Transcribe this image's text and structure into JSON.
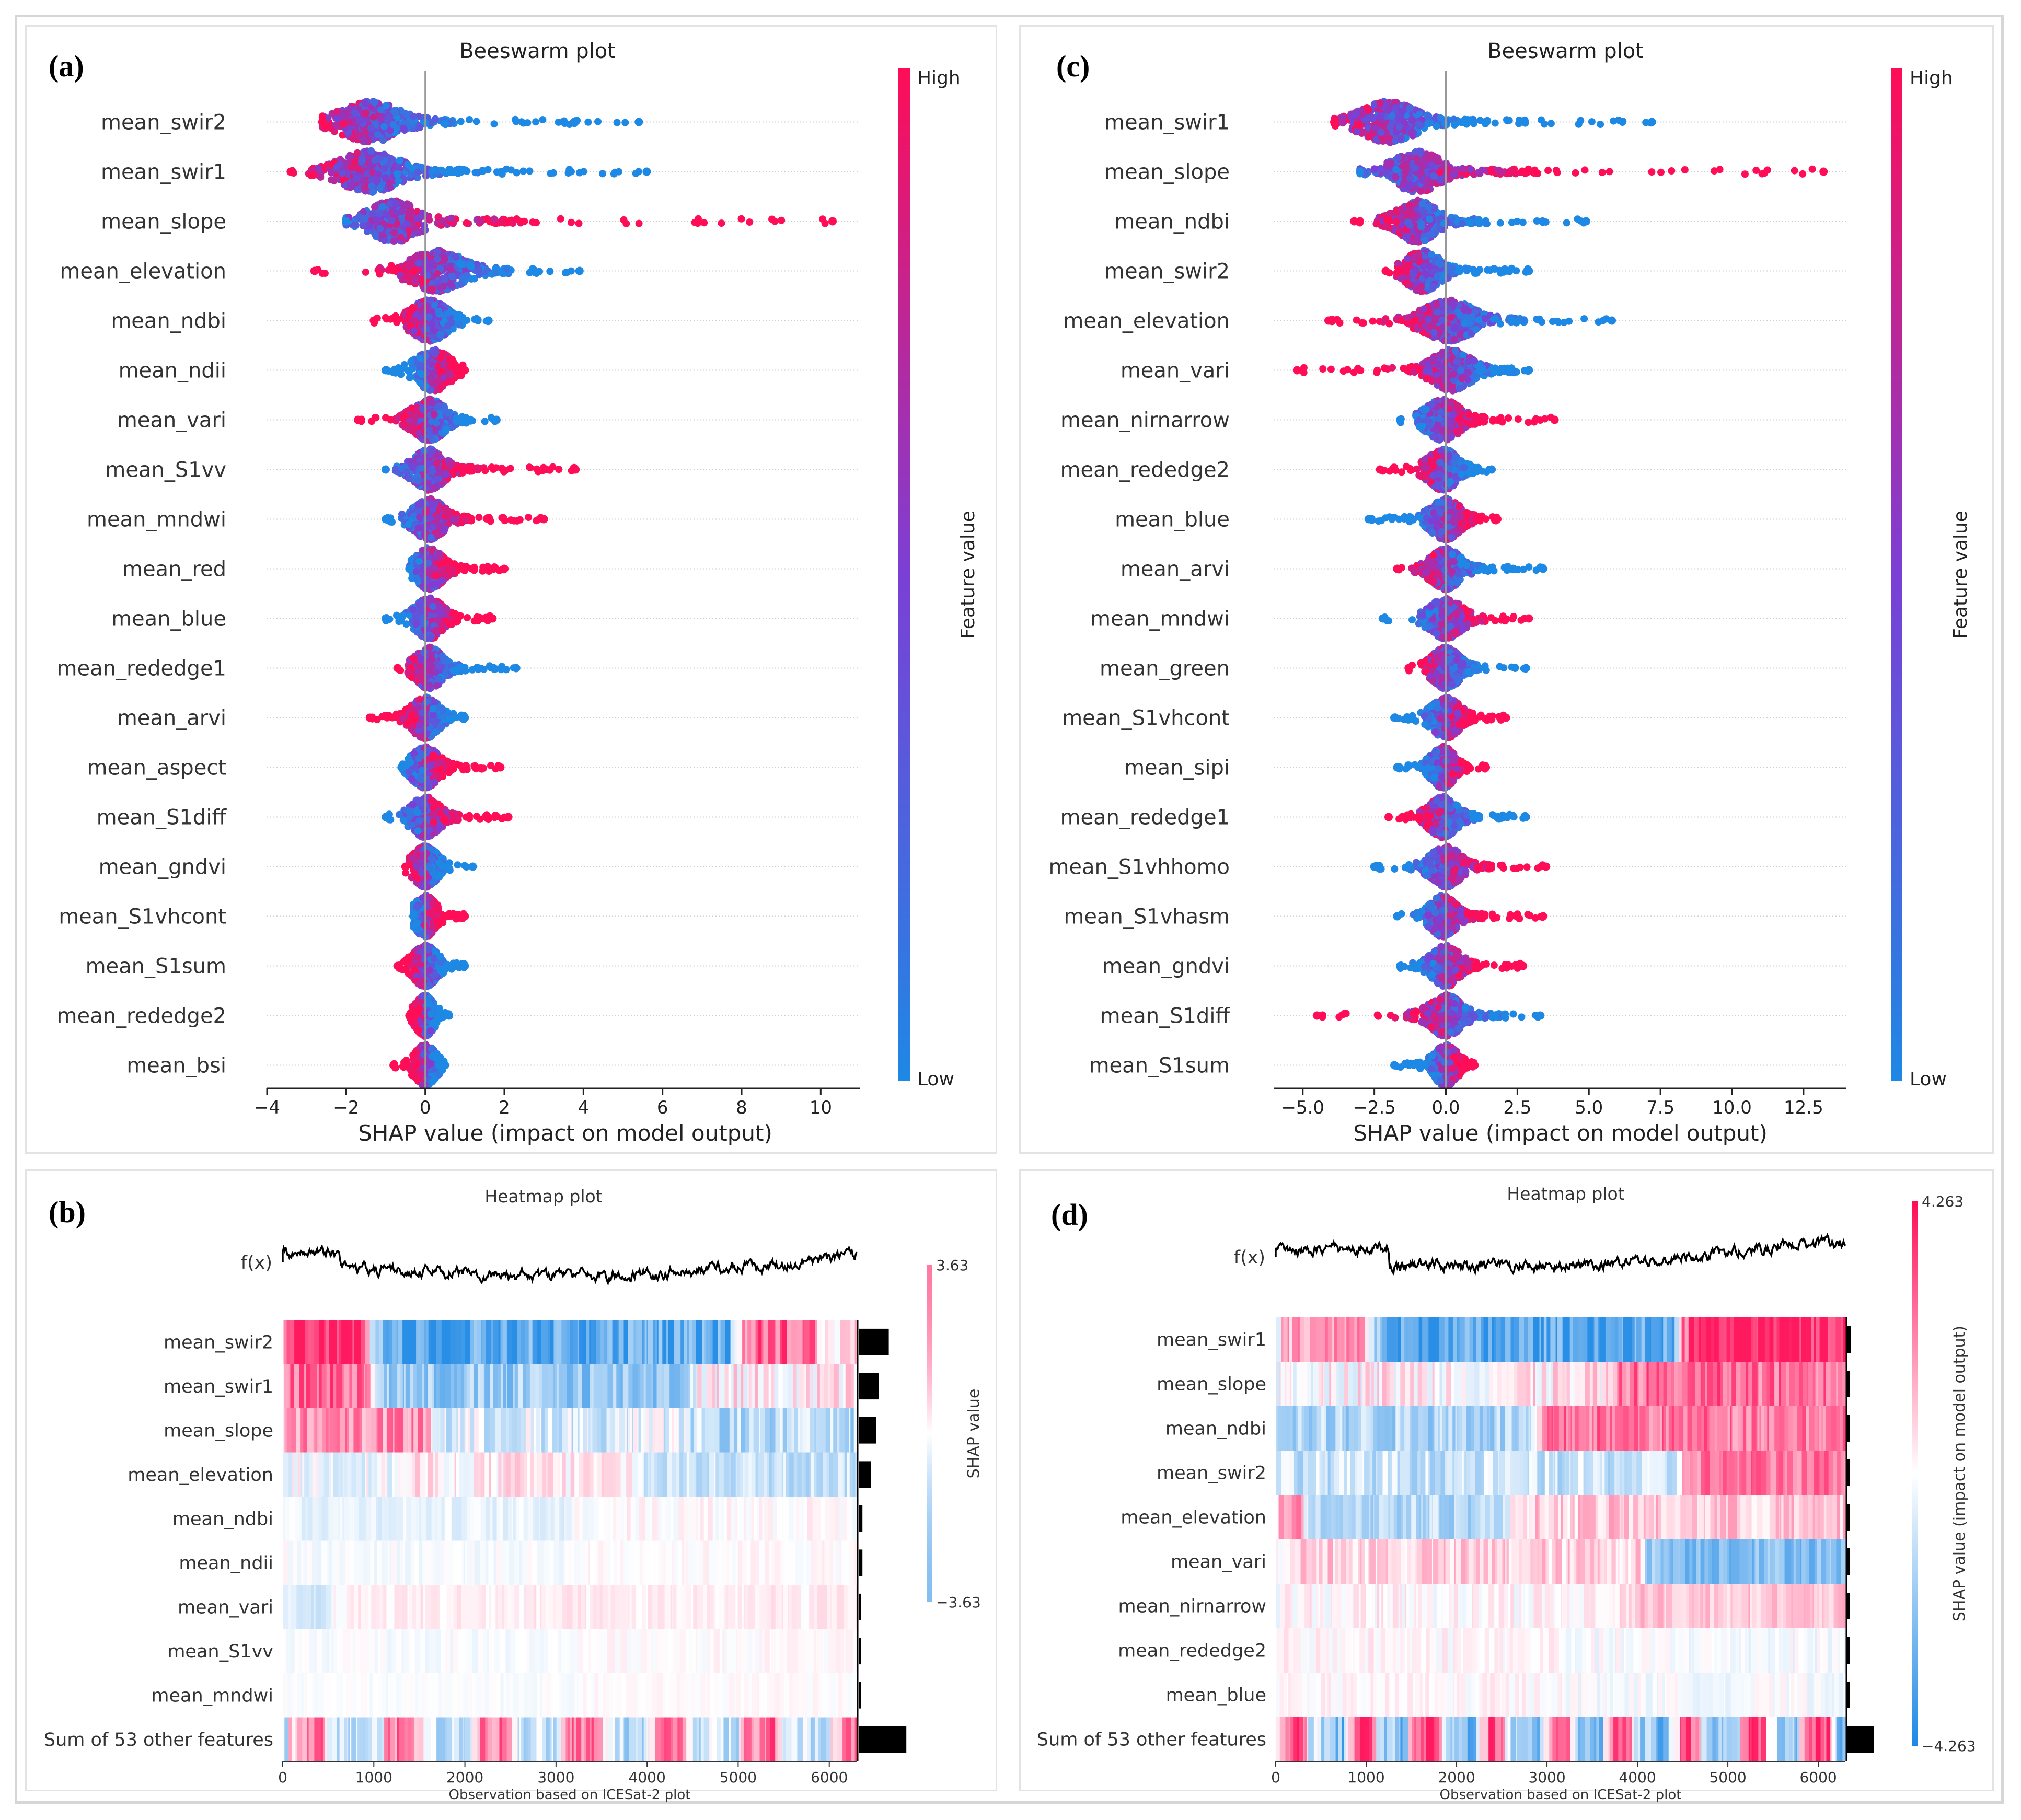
{
  "colors": {
    "high": "#ff0d57",
    "low": "#1e88e5",
    "mid": "#7b3fd6",
    "frame": "#d6d6d6"
  },
  "panels": {
    "a": {
      "label": "(a)"
    },
    "b": {
      "label": "(b)"
    },
    "c": {
      "label": "(c)"
    },
    "d": {
      "label": "(d)"
    }
  },
  "chart_data": [
    {
      "id": "a",
      "type": "scatter",
      "subtype": "beeswarm",
      "title": "Beeswarm plot",
      "xlabel": "SHAP value (impact on model output)",
      "xlim": [
        -4,
        11
      ],
      "xticks": [
        -4,
        -2,
        0,
        2,
        4,
        6,
        8,
        10
      ],
      "xtick_labels": [
        "−4",
        "−2",
        "0",
        "2",
        "4",
        "6",
        "8",
        "10"
      ],
      "colorbar": {
        "label": "Feature value",
        "high": "High",
        "low": "Low"
      },
      "features": [
        {
          "name": "mean_swir2",
          "min": -2.6,
          "max": 5.4,
          "mode": -1.4,
          "spread": 1.0,
          "high_side": "left"
        },
        {
          "name": "mean_swir1",
          "min": -3.4,
          "max": 5.6,
          "mode": -1.4,
          "spread": 1.0,
          "high_side": "left"
        },
        {
          "name": "mean_slope",
          "min": -2.0,
          "max": 10.3,
          "mode": -0.8,
          "spread": 0.8,
          "high_side": "right"
        },
        {
          "name": "mean_elevation",
          "min": -2.8,
          "max": 3.9,
          "mode": 0.3,
          "spread": 0.9,
          "high_side": "left"
        },
        {
          "name": "mean_ndbi",
          "min": -1.3,
          "max": 1.6,
          "mode": 0.1,
          "spread": 0.6,
          "high_side": "left"
        },
        {
          "name": "mean_ndii",
          "min": -1.0,
          "max": 1.0,
          "mode": 0.2,
          "spread": 0.55,
          "high_side": "right"
        },
        {
          "name": "mean_vari",
          "min": -1.7,
          "max": 1.8,
          "mode": 0.1,
          "spread": 0.55,
          "high_side": "left"
        },
        {
          "name": "mean_S1vv",
          "min": -1.0,
          "max": 3.8,
          "mode": 0.1,
          "spread": 0.5,
          "high_side": "right"
        },
        {
          "name": "mean_mndwi",
          "min": -1.0,
          "max": 3.0,
          "mode": 0.1,
          "spread": 0.5,
          "high_side": "right"
        },
        {
          "name": "mean_red",
          "min": -0.4,
          "max": 2.0,
          "mode": 0.1,
          "spread": 0.45,
          "high_side": "right"
        },
        {
          "name": "mean_blue",
          "min": -1.0,
          "max": 1.7,
          "mode": 0.1,
          "spread": 0.45,
          "high_side": "right"
        },
        {
          "name": "mean_rededge1",
          "min": -0.7,
          "max": 2.3,
          "mode": 0.1,
          "spread": 0.45,
          "high_side": "left"
        },
        {
          "name": "mean_arvi",
          "min": -1.4,
          "max": 1.0,
          "mode": 0.0,
          "spread": 0.45,
          "high_side": "left"
        },
        {
          "name": "mean_aspect",
          "min": -0.6,
          "max": 1.9,
          "mode": 0.0,
          "spread": 0.45,
          "high_side": "right"
        },
        {
          "name": "mean_S1diff",
          "min": -1.0,
          "max": 2.1,
          "mode": 0.0,
          "spread": 0.45,
          "high_side": "right"
        },
        {
          "name": "mean_gndvi",
          "min": -0.5,
          "max": 1.2,
          "mode": 0.0,
          "spread": 0.4,
          "high_side": "left"
        },
        {
          "name": "mean_S1vhcont",
          "min": -0.3,
          "max": 1.0,
          "mode": 0.0,
          "spread": 0.35,
          "high_side": "right"
        },
        {
          "name": "mean_S1sum",
          "min": -0.7,
          "max": 1.0,
          "mode": 0.0,
          "spread": 0.4,
          "high_side": "left"
        },
        {
          "name": "mean_rededge2",
          "min": -0.4,
          "max": 0.6,
          "mode": 0.0,
          "spread": 0.3,
          "high_side": "left"
        },
        {
          "name": "mean_bsi",
          "min": -0.8,
          "max": 0.5,
          "mode": 0.0,
          "spread": 0.35,
          "high_side": "left"
        }
      ]
    },
    {
      "id": "b",
      "type": "heatmap",
      "title": "Heatmap plot",
      "xlabel": "Observation based on ICESat-2 plot",
      "fx_label": "f(x)",
      "xlim": [
        0,
        6300
      ],
      "xticks": [
        0,
        1000,
        2000,
        3000,
        4000,
        5000,
        6000
      ],
      "xtick_labels": [
        "0",
        "1000",
        "2000",
        "3000",
        "4000",
        "5000",
        "6000"
      ],
      "colorbar": {
        "label": "SHAP value",
        "max_label": "3.63",
        "min_label": "−3.63"
      },
      "features": [
        {
          "name": "mean_swir2",
          "intensity": 1.0,
          "importance": 0.24
        },
        {
          "name": "mean_swir1",
          "intensity": 0.85,
          "importance": 0.16
        },
        {
          "name": "mean_slope",
          "intensity": 0.8,
          "importance": 0.14
        },
        {
          "name": "mean_elevation",
          "intensity": 0.6,
          "importance": 0.1
        },
        {
          "name": "mean_ndbi",
          "intensity": 0.3,
          "importance": 0.03
        },
        {
          "name": "mean_ndii",
          "intensity": 0.22,
          "importance": 0.03
        },
        {
          "name": "mean_vari",
          "intensity": 0.28,
          "importance": 0.02
        },
        {
          "name": "mean_S1vv",
          "intensity": 0.2,
          "importance": 0.02
        },
        {
          "name": "mean_mndwi",
          "intensity": 0.15,
          "importance": 0.02
        },
        {
          "name": "Sum of 53 other features",
          "intensity": 0.9,
          "importance": 0.38
        }
      ]
    },
    {
      "id": "c",
      "type": "scatter",
      "subtype": "beeswarm",
      "title": "Beeswarm plot",
      "xlabel": "SHAP value (impact on model output)",
      "xlim": [
        -6,
        14
      ],
      "xticks": [
        -5,
        -2.5,
        0,
        2.5,
        5,
        7.5,
        10,
        12.5
      ],
      "xtick_labels": [
        "−5.0",
        "−2.5",
        "0.0",
        "2.5",
        "5.0",
        "7.5",
        "10.0",
        "12.5"
      ],
      "colorbar": {
        "label": "Feature value",
        "high": "High",
        "low": "Low"
      },
      "features": [
        {
          "name": "mean_swir1",
          "min": -3.9,
          "max": 7.2,
          "mode": -2.0,
          "spread": 1.3,
          "high_side": "left"
        },
        {
          "name": "mean_slope",
          "min": -3.0,
          "max": 13.2,
          "mode": -1.0,
          "spread": 1.1,
          "high_side": "right"
        },
        {
          "name": "mean_ndbi",
          "min": -3.2,
          "max": 4.9,
          "mode": -1.0,
          "spread": 0.9,
          "high_side": "left"
        },
        {
          "name": "mean_swir2",
          "min": -2.1,
          "max": 2.9,
          "mode": -0.8,
          "spread": 0.8,
          "high_side": "left"
        },
        {
          "name": "mean_elevation",
          "min": -4.1,
          "max": 5.8,
          "mode": 0.1,
          "spread": 1.2,
          "high_side": "left"
        },
        {
          "name": "mean_vari",
          "min": -5.2,
          "max": 2.9,
          "mode": 0.2,
          "spread": 0.9,
          "high_side": "left"
        },
        {
          "name": "mean_nirnarrow",
          "min": -1.6,
          "max": 3.8,
          "mode": -0.1,
          "spread": 0.8,
          "high_side": "right"
        },
        {
          "name": "mean_rededge2",
          "min": -2.3,
          "max": 1.6,
          "mode": -0.1,
          "spread": 0.7,
          "high_side": "left"
        },
        {
          "name": "mean_blue",
          "min": -2.7,
          "max": 1.8,
          "mode": 0.0,
          "spread": 0.7,
          "high_side": "right"
        },
        {
          "name": "mean_arvi",
          "min": -1.7,
          "max": 3.4,
          "mode": 0.0,
          "spread": 0.7,
          "high_side": "left"
        },
        {
          "name": "mean_mndwi",
          "min": -2.2,
          "max": 2.9,
          "mode": 0.0,
          "spread": 0.75,
          "high_side": "right"
        },
        {
          "name": "mean_green",
          "min": -1.3,
          "max": 2.8,
          "mode": 0.0,
          "spread": 0.65,
          "high_side": "left"
        },
        {
          "name": "mean_S1vhcont",
          "min": -1.8,
          "max": 2.1,
          "mode": 0.0,
          "spread": 0.65,
          "high_side": "right"
        },
        {
          "name": "mean_sipi",
          "min": -1.7,
          "max": 1.4,
          "mode": -0.1,
          "spread": 0.55,
          "high_side": "right"
        },
        {
          "name": "mean_rededge1",
          "min": -2.0,
          "max": 2.8,
          "mode": -0.1,
          "spread": 0.65,
          "high_side": "left"
        },
        {
          "name": "mean_S1vhhomo",
          "min": -2.5,
          "max": 3.5,
          "mode": 0.0,
          "spread": 0.7,
          "high_side": "right"
        },
        {
          "name": "mean_S1vhasm",
          "min": -1.7,
          "max": 3.4,
          "mode": -0.1,
          "spread": 0.6,
          "high_side": "right"
        },
        {
          "name": "mean_gndvi",
          "min": -1.6,
          "max": 2.7,
          "mode": 0.0,
          "spread": 0.65,
          "high_side": "right"
        },
        {
          "name": "mean_S1diff",
          "min": -4.5,
          "max": 3.3,
          "mode": 0.0,
          "spread": 0.75,
          "high_side": "left"
        },
        {
          "name": "mean_S1sum",
          "min": -1.8,
          "max": 1.0,
          "mode": 0.0,
          "spread": 0.55,
          "high_side": "right"
        }
      ]
    },
    {
      "id": "d",
      "type": "heatmap",
      "title": "Heatmap plot",
      "xlabel": "Observation based on ICESat-2 plot",
      "fx_label": "f(x)",
      "xlim": [
        0,
        6300
      ],
      "xticks": [
        0,
        1000,
        2000,
        3000,
        4000,
        5000,
        6000
      ],
      "xtick_labels": [
        "0",
        "1000",
        "2000",
        "3000",
        "4000",
        "5000",
        "6000"
      ],
      "colorbar": {
        "label": "SHAP value (impact on model output)",
        "max_label": "4.263",
        "min_label": "−4.263"
      },
      "features": [
        {
          "name": "mean_swir1",
          "intensity": 1.0,
          "importance": 0.05
        },
        {
          "name": "mean_slope",
          "intensity": 0.85,
          "importance": 0.04
        },
        {
          "name": "mean_ndbi",
          "intensity": 0.8,
          "importance": 0.04
        },
        {
          "name": "mean_swir2",
          "intensity": 0.7,
          "importance": 0.03
        },
        {
          "name": "mean_elevation",
          "intensity": 0.65,
          "importance": 0.03
        },
        {
          "name": "mean_vari",
          "intensity": 0.65,
          "importance": 0.03
        },
        {
          "name": "mean_nirnarrow",
          "intensity": 0.45,
          "importance": 0.02
        },
        {
          "name": "mean_rededge2",
          "intensity": 0.35,
          "importance": 0.02
        },
        {
          "name": "mean_blue",
          "intensity": 0.3,
          "importance": 0.02
        },
        {
          "name": "Sum of 53 other features",
          "intensity": 1.0,
          "importance": 0.42
        }
      ]
    }
  ]
}
